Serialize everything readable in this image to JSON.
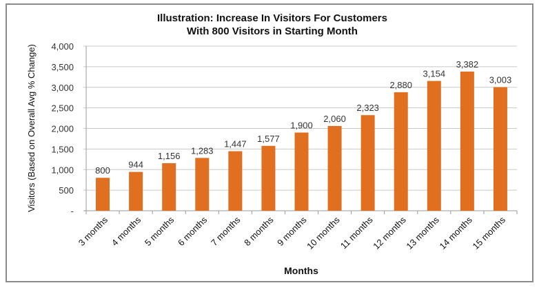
{
  "chart_data": {
    "type": "bar",
    "title": [
      "Illustration: Increase In Visitors For Customers",
      "With 800 Visitors in Starting Month"
    ],
    "xlabel": "Months",
    "ylabel": "Visitors (Based on Overall Avg % Change)",
    "categories": [
      "3 months",
      "4 months",
      "5 months",
      "6 months",
      "7 months",
      "8 months",
      "9 months",
      "10 months",
      "11 months",
      "12 months",
      "13 months",
      "14 months",
      "15 months"
    ],
    "values": [
      800,
      944,
      1156,
      1283,
      1447,
      1577,
      1900,
      2060,
      2323,
      2880,
      3154,
      3382,
      3003
    ],
    "data_labels": [
      "800",
      "944",
      "1,156",
      "1,283",
      "1,447",
      "1,577",
      "1,900",
      "2,060",
      "2,323",
      "2,880",
      "3,154",
      "3,382",
      "3,003"
    ],
    "ylim": [
      0,
      4000
    ],
    "yticks": [
      0,
      500,
      1000,
      1500,
      2000,
      2500,
      3000,
      3500,
      4000
    ],
    "ytick_labels": [
      "-",
      "500",
      "1,000",
      "1,500",
      "2,000",
      "2,500",
      "3,000",
      "3,500",
      "4,000"
    ],
    "grid": true,
    "bar_color": "#e07020"
  }
}
